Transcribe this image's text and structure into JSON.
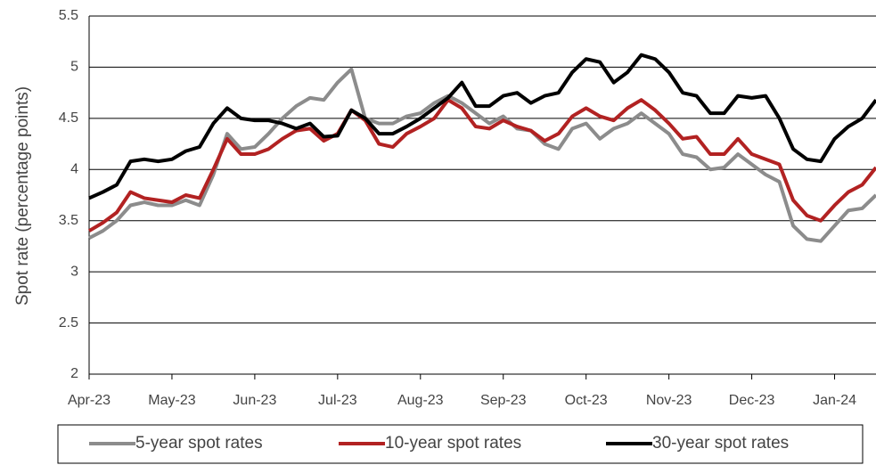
{
  "chart_data": {
    "type": "line",
    "y_label": "Spot rate (percentage points)",
    "categories": [
      "Apr-23",
      null,
      null,
      null,
      null,
      null,
      "May-23",
      null,
      null,
      null,
      null,
      null,
      "Jun-23",
      null,
      null,
      null,
      null,
      null,
      "Jul-23",
      null,
      null,
      null,
      null,
      null,
      "Aug-23",
      null,
      null,
      null,
      null,
      null,
      "Sep-23",
      null,
      null,
      null,
      null,
      null,
      "Oct-23",
      null,
      null,
      null,
      null,
      null,
      "Nov-23",
      null,
      null,
      null,
      null,
      null,
      "Dec-23",
      null,
      null,
      null,
      null,
      null,
      "Jan-24",
      null,
      null,
      null
    ],
    "series": [
      {
        "name": "5-year spot rates",
        "color": "#8c8c8c",
        "values": [
          3.33,
          3.4,
          3.5,
          3.65,
          3.68,
          3.65,
          3.65,
          3.7,
          3.65,
          3.95,
          4.35,
          4.2,
          4.22,
          4.35,
          4.5,
          4.62,
          4.7,
          4.68,
          4.85,
          4.98,
          4.5,
          4.45,
          4.45,
          4.52,
          4.55,
          4.65,
          4.72,
          4.65,
          4.55,
          4.45,
          4.52,
          4.4,
          4.38,
          4.25,
          4.2,
          4.4,
          4.45,
          4.3,
          4.4,
          4.45,
          4.55,
          4.45,
          4.35,
          4.15,
          4.12,
          4.0,
          4.02,
          4.15,
          4.05,
          3.95,
          3.88,
          3.45,
          3.32,
          3.3,
          3.45,
          3.6,
          3.62,
          3.75
        ]
      },
      {
        "name": "10-year spot rates",
        "color": "#b22222",
        "values": [
          3.4,
          3.48,
          3.58,
          3.78,
          3.72,
          3.7,
          3.68,
          3.75,
          3.72,
          4.0,
          4.3,
          4.15,
          4.15,
          4.2,
          4.3,
          4.38,
          4.4,
          4.28,
          4.35,
          4.58,
          4.48,
          4.25,
          4.22,
          4.35,
          4.42,
          4.5,
          4.68,
          4.6,
          4.42,
          4.4,
          4.48,
          4.42,
          4.38,
          4.28,
          4.35,
          4.52,
          4.6,
          4.52,
          4.48,
          4.6,
          4.68,
          4.58,
          4.45,
          4.3,
          4.32,
          4.15,
          4.15,
          4.3,
          4.15,
          4.1,
          4.05,
          3.7,
          3.55,
          3.5,
          3.65,
          3.78,
          3.85,
          4.02
        ]
      },
      {
        "name": "30-year spot rates",
        "color": "#000000",
        "values": [
          3.72,
          3.78,
          3.85,
          4.08,
          4.1,
          4.08,
          4.1,
          4.18,
          4.22,
          4.45,
          4.6,
          4.5,
          4.48,
          4.48,
          4.45,
          4.4,
          4.45,
          4.32,
          4.33,
          4.58,
          4.5,
          4.35,
          4.35,
          4.42,
          4.5,
          4.6,
          4.7,
          4.85,
          4.62,
          4.62,
          4.72,
          4.75,
          4.65,
          4.72,
          4.75,
          4.95,
          5.08,
          5.05,
          4.85,
          4.95,
          5.12,
          5.08,
          4.95,
          4.75,
          4.72,
          4.55,
          4.55,
          4.72,
          4.7,
          4.72,
          4.5,
          4.2,
          4.1,
          4.08,
          4.3,
          4.42,
          4.5,
          4.68
        ]
      }
    ],
    "ylim": [
      2,
      5.5
    ],
    "yticks": [
      2,
      2.5,
      3,
      3.5,
      4,
      4.5,
      5,
      5.5
    ],
    "grid": true,
    "legend": "bottom"
  }
}
